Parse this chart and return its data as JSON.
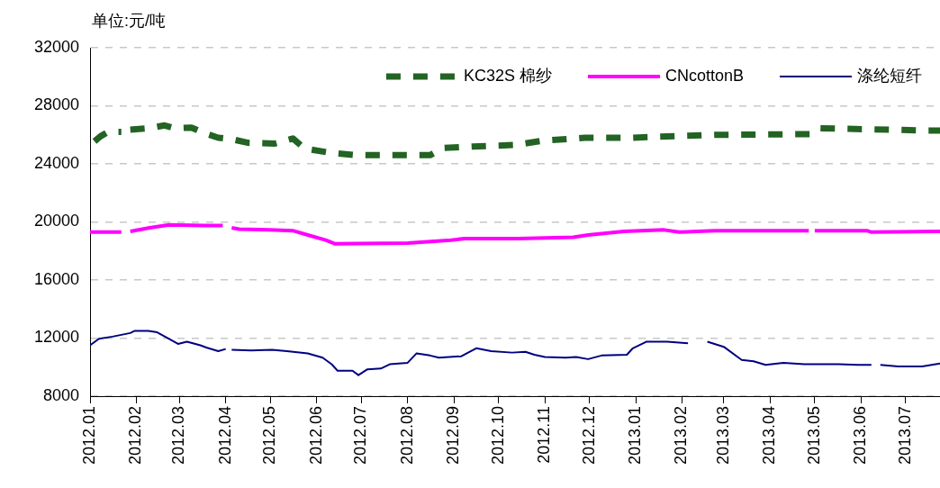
{
  "chart_data": {
    "type": "line",
    "ylabel": "单位:元/吨",
    "xlim": [
      "2012-01-01",
      "2013-07-24"
    ],
    "ylim": [
      8000,
      32000
    ],
    "yticks": [
      8000,
      12000,
      16000,
      20000,
      24000,
      28000,
      32000
    ],
    "xticks": [
      {
        "value": "2012-01-01",
        "label": "2012.01"
      },
      {
        "value": "2012-02-01",
        "label": "2012.02"
      },
      {
        "value": "2012-03-01",
        "label": "2012.03"
      },
      {
        "value": "2012-04-01",
        "label": "2012.04"
      },
      {
        "value": "2012-05-01",
        "label": "2012.05"
      },
      {
        "value": "2012-06-01",
        "label": "2012.06"
      },
      {
        "value": "2012-07-01",
        "label": "2012.07"
      },
      {
        "value": "2012-08-01",
        "label": "2012.08"
      },
      {
        "value": "2012-09-01",
        "label": "2012.09"
      },
      {
        "value": "2012-10-01",
        "label": "2012.10"
      },
      {
        "value": "2012-11-01",
        "label": "2012.11"
      },
      {
        "value": "2012-12-01",
        "label": "2012.12"
      },
      {
        "value": "2013-01-01",
        "label": "2013.01"
      },
      {
        "value": "2013-02-01",
        "label": "2013.02"
      },
      {
        "value": "2013-03-01",
        "label": "2013.03"
      },
      {
        "value": "2013-04-01",
        "label": "2013.04"
      },
      {
        "value": "2013-05-01",
        "label": "2013.05"
      },
      {
        "value": "2013-06-01",
        "label": "2013.06"
      },
      {
        "value": "2013-07-01",
        "label": "2013.07"
      }
    ],
    "grid": "y",
    "legend": "top right",
    "marker": "none",
    "series": [
      {
        "name": "KC32S 棉纱",
        "color": "#236323",
        "line_style": "dashed",
        "x": [
          "2012-01-04",
          "2012-01-08",
          "2012-01-13",
          "2012-01-22",
          "2012-01-25",
          "2012-01-28",
          "2012-02-09",
          "2012-02-20",
          "2012-02-27",
          "2012-03-09",
          "2012-03-18",
          "2012-03-27",
          "2012-04-05",
          "2012-04-16",
          "2012-05-04",
          "2012-05-16",
          "2012-05-24",
          "2012-06-11",
          "2012-06-27",
          "2012-08-16",
          "2012-08-25",
          "2012-09-14",
          "2012-10-12",
          "2012-10-31",
          "2012-11-28",
          "2012-12-29",
          "2013-02-23",
          "2013-04-28",
          "2013-05-04",
          "2013-06-24",
          "2013-07-12",
          "2013-07-24"
        ],
        "values": [
          25550,
          25900,
          26200,
          26200,
          null,
          26350,
          26450,
          26650,
          26450,
          26500,
          26100,
          25800,
          25700,
          25450,
          25400,
          25750,
          25050,
          24750,
          24600,
          24600,
          25100,
          25200,
          25300,
          25600,
          25800,
          25800,
          26000,
          26050,
          26450,
          26350,
          26300,
          26300
        ]
      },
      {
        "name": "CNcottonB",
        "color": "#ff00ff",
        "line_style": "solid",
        "x": [
          "2012-01-01",
          "2012-01-22",
          "2012-01-25",
          "2012-01-28",
          "2012-02-10",
          "2012-02-23",
          "2012-03-18",
          "2012-03-30",
          "2012-04-02",
          "2012-04-05",
          "2012-04-10",
          "2012-04-30",
          "2012-05-16",
          "2012-05-26",
          "2012-06-07",
          "2012-06-13",
          "2012-08-01",
          "2012-08-30",
          "2012-09-08",
          "2012-10-14",
          "2012-11-20",
          "2012-11-30",
          "2012-12-24",
          "2013-01-20",
          "2013-01-30",
          "2013-02-23",
          "2013-04-27",
          "2013-04-29",
          "2013-05-01",
          "2013-06-05",
          "2013-06-08",
          "2013-07-24"
        ],
        "values": [
          19300,
          19300,
          null,
          19350,
          19600,
          19800,
          19750,
          19750,
          null,
          19600,
          19500,
          19450,
          19400,
          19100,
          18750,
          18500,
          18550,
          18750,
          18850,
          18850,
          18950,
          19100,
          19350,
          19450,
          19300,
          19400,
          19400,
          null,
          19400,
          19400,
          19300,
          19350
        ]
      },
      {
        "name": "涤纶短纤",
        "color": "#000080",
        "line_style": "solid",
        "x": [
          "2012-01-01",
          "2012-01-07",
          "2012-01-16",
          "2012-01-28",
          "2012-01-31",
          "2012-02-09",
          "2012-02-15",
          "2012-02-23",
          "2012-02-29",
          "2012-03-06",
          "2012-03-15",
          "2012-03-19",
          "2012-03-27",
          "2012-04-01",
          "2012-04-03",
          "2012-04-05",
          "2012-04-18",
          "2012-05-02",
          "2012-05-12",
          "2012-05-26",
          "2012-06-05",
          "2012-06-11",
          "2012-06-15",
          "2012-06-25",
          "2012-06-29",
          "2012-07-05",
          "2012-07-14",
          "2012-07-20",
          "2012-08-01",
          "2012-08-07",
          "2012-08-16",
          "2012-08-22",
          "2012-09-06",
          "2012-09-16",
          "2012-09-26",
          "2012-10-10",
          "2012-10-19",
          "2012-10-25",
          "2012-11-01",
          "2012-11-15",
          "2012-11-22",
          "2012-11-30",
          "2012-12-09",
          "2012-12-26",
          "2012-12-30",
          "2013-01-08",
          "2013-01-22",
          "2013-02-05",
          "2013-02-12",
          "2013-02-18",
          "2013-03-01",
          "2013-03-13",
          "2013-03-21",
          "2013-03-29",
          "2013-04-10",
          "2013-04-24",
          "2013-05-17",
          "2013-05-30",
          "2013-06-08",
          "2013-06-11",
          "2013-06-14",
          "2013-06-26",
          "2013-07-12",
          "2013-07-24"
        ],
        "values": [
          11500,
          11950,
          12100,
          12350,
          12500,
          12500,
          12400,
          11950,
          11600,
          11750,
          11500,
          11350,
          11100,
          11250,
          null,
          11200,
          11150,
          11200,
          11100,
          10950,
          10650,
          10200,
          9750,
          9750,
          9450,
          9850,
          9900,
          10200,
          10300,
          10950,
          10800,
          10650,
          10750,
          11300,
          11100,
          11000,
          11050,
          10850,
          10700,
          10650,
          10700,
          10550,
          10800,
          10850,
          11300,
          11750,
          11750,
          11650,
          null,
          11750,
          11400,
          10500,
          10400,
          10150,
          10300,
          10200,
          10200,
          10150,
          10150,
          null,
          10150,
          10050,
          10050,
          10250
        ]
      }
    ]
  }
}
